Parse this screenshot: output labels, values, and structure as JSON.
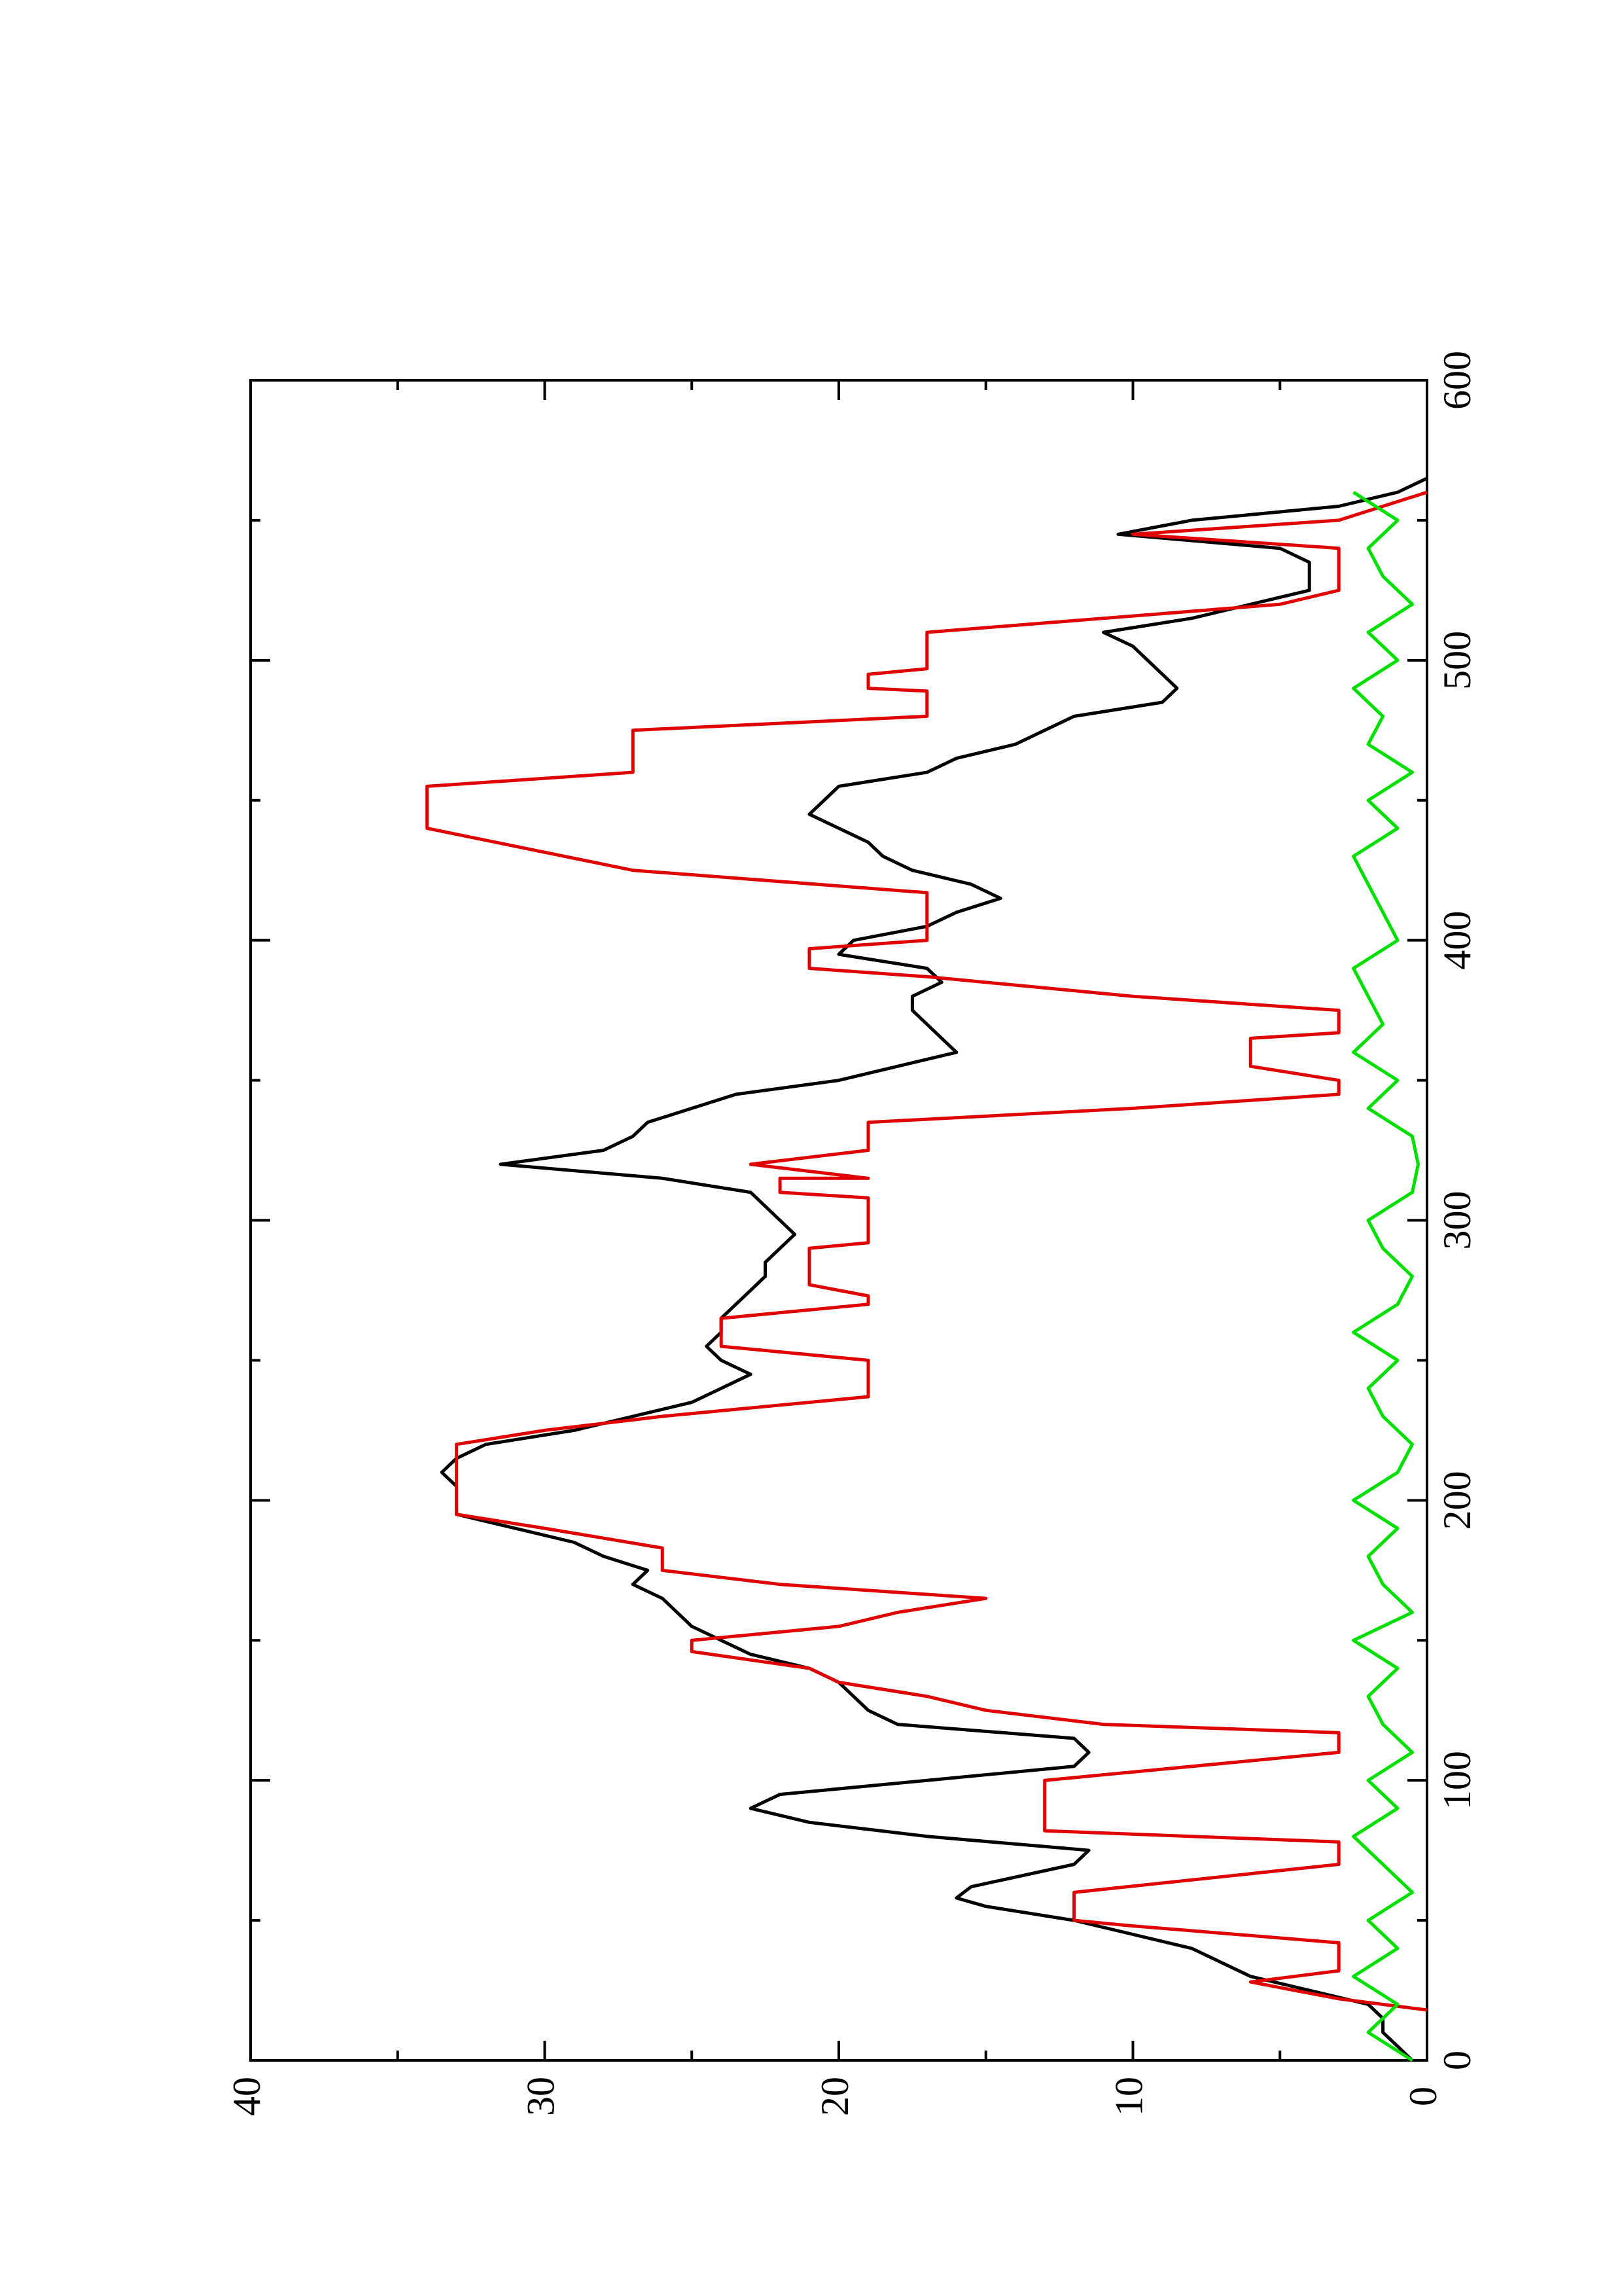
{
  "chart_data": {
    "type": "line",
    "xlim": [
      0,
      600
    ],
    "xticks": [
      0,
      100,
      200,
      300,
      400,
      500,
      600
    ],
    "xminorticks": [
      50,
      150,
      250,
      350,
      450,
      550
    ],
    "ylim": [
      0,
      40
    ],
    "yticks": [
      0,
      10,
      20,
      30,
      40
    ],
    "yminorticks": [
      5,
      15,
      25,
      35
    ],
    "series": [
      {
        "color": "#000000",
        "x": [
          0,
          5,
          10,
          15,
          20,
          25,
          30,
          35,
          40,
          45,
          50,
          55,
          58,
          62,
          70,
          75,
          80,
          85,
          90,
          95,
          100,
          105,
          110,
          115,
          120,
          125,
          130,
          135,
          140,
          145,
          150,
          155,
          160,
          165,
          170,
          175,
          180,
          185,
          190,
          195,
          200,
          205,
          210,
          215,
          220,
          225,
          230,
          235,
          240,
          245,
          250,
          255,
          260,
          265,
          270,
          275,
          280,
          285,
          290,
          295,
          300,
          305,
          310,
          315,
          320,
          325,
          330,
          335,
          340,
          345,
          350,
          355,
          360,
          365,
          370,
          375,
          380,
          385,
          390,
          395,
          400,
          405,
          410,
          415,
          420,
          425,
          430,
          435,
          440,
          445,
          450,
          455,
          460,
          465,
          470,
          475,
          480,
          485,
          490,
          495,
          500,
          505,
          510,
          515,
          520,
          525,
          530,
          535,
          540,
          545,
          550,
          555,
          560,
          565
        ],
        "values": [
          0.5,
          1,
          1.5,
          1.5,
          2,
          4,
          6,
          7,
          8,
          10,
          12,
          15,
          16,
          15.5,
          12,
          11.5,
          17,
          21,
          23,
          22,
          17,
          12,
          11.5,
          12,
          18,
          19,
          19.5,
          20,
          21,
          23,
          24,
          25,
          25.5,
          26,
          27,
          26.5,
          28,
          29,
          31,
          33,
          33,
          33,
          33.5,
          33,
          32,
          29,
          27,
          25,
          24,
          23,
          24,
          24.5,
          24,
          24,
          23.5,
          23,
          22.5,
          22.5,
          22,
          21.5,
          22,
          22.5,
          23,
          26,
          31.5,
          28,
          27,
          26.5,
          25,
          23.5,
          20,
          18,
          16,
          16.5,
          17,
          17.5,
          17.5,
          16.5,
          17,
          20,
          19.5,
          17,
          16,
          14.5,
          15.5,
          17.5,
          18.5,
          19,
          20,
          21,
          20.5,
          20,
          17,
          16,
          14,
          13,
          12,
          9,
          8.5,
          9,
          9.5,
          10,
          11,
          8,
          6,
          4,
          4,
          4,
          5,
          10.5,
          8,
          3,
          1,
          0
        ]
      },
      {
        "color": "#e00000",
        "x": [
          18,
          22,
          28,
          32,
          42,
          48,
          50,
          60,
          70,
          78,
          82,
          100,
          110,
          117,
          120,
          125,
          130,
          135,
          140,
          146,
          150,
          155,
          160,
          165,
          170,
          175,
          183,
          190,
          195,
          220,
          225,
          230,
          237,
          250,
          255,
          265,
          270,
          273,
          277,
          290,
          292,
          308,
          310,
          315,
          315,
          320,
          325,
          335,
          340,
          345,
          350,
          355,
          365,
          367,
          375,
          380,
          387,
          390,
          397,
          400,
          417,
          425,
          440,
          455,
          460,
          475,
          480,
          489,
          490,
          495,
          497,
          510,
          520,
          525,
          540,
          545,
          550,
          560
        ],
        "values": [
          0,
          3,
          6,
          3,
          3,
          10,
          12,
          12,
          3,
          3,
          13,
          13,
          3,
          3,
          11,
          15,
          17,
          20,
          21,
          25,
          25,
          20,
          18,
          15,
          22,
          26,
          26,
          30,
          33,
          33,
          30,
          26,
          19,
          19,
          24,
          24,
          19,
          19,
          21,
          21,
          19,
          19,
          22,
          22,
          19,
          23,
          19,
          19,
          10,
          3,
          3,
          6,
          6,
          3,
          3,
          10,
          17,
          21,
          21,
          17,
          17,
          27,
          34,
          34,
          27,
          27,
          17,
          17,
          19,
          19,
          17,
          17,
          5,
          3,
          3,
          10,
          3,
          0
        ]
      },
      {
        "color": "#00e000",
        "x": [
          0,
          10,
          20,
          30,
          40,
          50,
          60,
          70,
          80,
          90,
          100,
          110,
          120,
          130,
          140,
          150,
          160,
          170,
          180,
          190,
          200,
          210,
          220,
          230,
          240,
          250,
          260,
          270,
          280,
          290,
          300,
          310,
          320,
          330,
          340,
          350,
          360,
          370,
          380,
          390,
          400,
          410,
          420,
          430,
          440,
          450,
          460,
          470,
          480,
          490,
          500,
          510,
          520,
          530,
          540,
          550,
          560
        ],
        "values": [
          0.5,
          2,
          1,
          2.5,
          1,
          2,
          0.5,
          1.5,
          2.5,
          1,
          2,
          0.5,
          1.5,
          2,
          1,
          2.5,
          0.5,
          1.5,
          2,
          1,
          2.5,
          1,
          0.5,
          1.5,
          2,
          1,
          2.5,
          1,
          0.5,
          1.5,
          2,
          0.5,
          0.3,
          0.5,
          2,
          1,
          2.5,
          1.5,
          2,
          2.5,
          1,
          1.5,
          2,
          2.5,
          1,
          2,
          0.5,
          2,
          1.5,
          2.5,
          1,
          2,
          0.5,
          1.5,
          2,
          1,
          2.5
        ]
      }
    ]
  }
}
